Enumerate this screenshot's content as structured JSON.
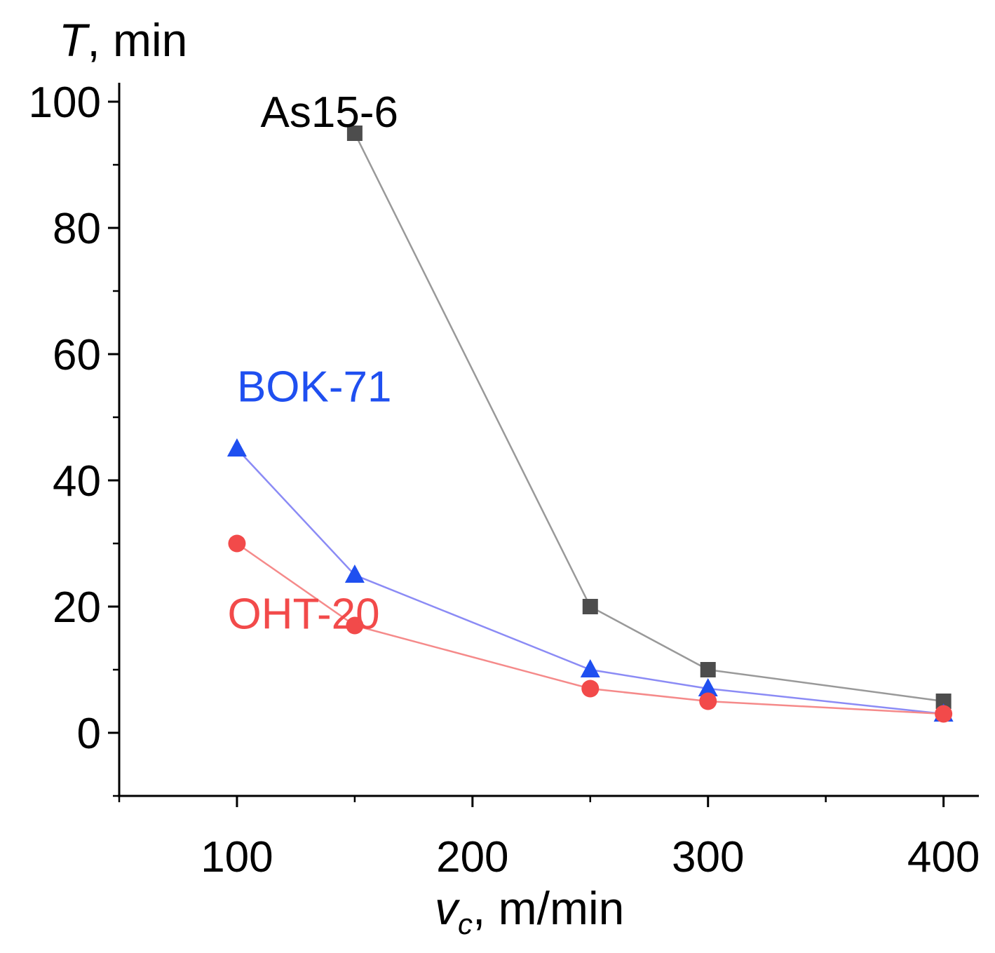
{
  "chart_data": {
    "type": "line",
    "ylabel_italic": "T",
    "ylabel_rest": ", min",
    "xlabel_italic": "v",
    "xlabel_sub": "c",
    "xlabel_rest": ", m/min",
    "xlim": [
      50,
      415
    ],
    "ylim": [
      -10,
      103
    ],
    "xticks": [
      100,
      200,
      300,
      400
    ],
    "xtick_labels": [
      "100",
      "200",
      "300",
      "400"
    ],
    "x_minor_ticks": [
      50,
      150,
      250,
      350
    ],
    "yticks": [
      0,
      20,
      40,
      60,
      80,
      100
    ],
    "ytick_labels": [
      "0",
      "20",
      "40",
      "60",
      "80",
      "100"
    ],
    "y_minor_ticks": [
      -10,
      10,
      30,
      50,
      70,
      90
    ],
    "grid": false,
    "series": [
      {
        "name": "As15-6",
        "color": "#4d4d4d",
        "line_color": "#999999",
        "marker": "square",
        "x": [
          150,
          250,
          300,
          400
        ],
        "y": [
          95,
          20,
          10,
          5
        ],
        "label": "As15-6",
        "label_color": "#000000",
        "label_at": [
          110,
          96
        ]
      },
      {
        "name": "BOK-71",
        "color": "#1f4ff0",
        "line_color": "#8b8bf5",
        "marker": "triangle",
        "x": [
          100,
          150,
          250,
          300,
          400
        ],
        "y": [
          45,
          25,
          10,
          7,
          3
        ],
        "label": "BOK-71",
        "label_color": "#1f4ff0",
        "label_at": [
          100,
          52.5
        ]
      },
      {
        "name": "OHT-20",
        "color": "#f24a4a",
        "line_color": "#f58a8a",
        "marker": "circle",
        "x": [
          100,
          150,
          250,
          300,
          400
        ],
        "y": [
          30,
          17,
          7,
          5,
          3
        ],
        "label": "OHT-20",
        "label_color": "#f24a4a",
        "label_at": [
          96,
          16.5
        ]
      }
    ]
  }
}
